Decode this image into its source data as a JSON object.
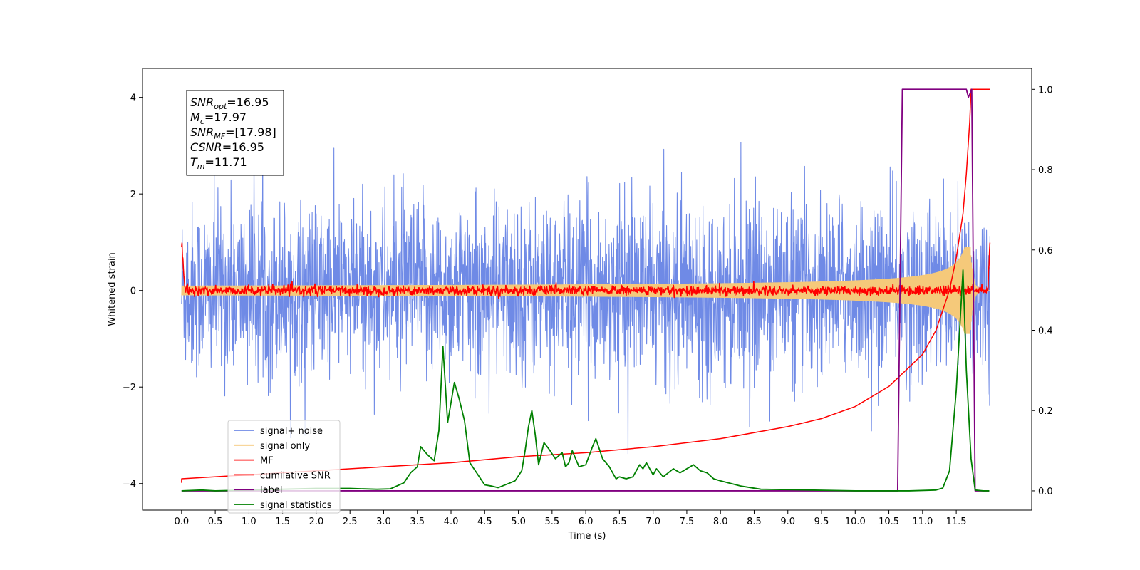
{
  "chart_data": {
    "type": "line",
    "xlabel": "Time (s)",
    "ylabel": "Whitened strain",
    "xlim": [
      -0.58,
      12.62
    ],
    "ylim": [
      -4.55,
      4.6
    ],
    "y2lim": [
      -0.048,
      1.052
    ],
    "xticks": [
      0.0,
      0.5,
      1.0,
      1.5,
      2.0,
      2.5,
      3.0,
      3.5,
      4.0,
      4.5,
      5.0,
      5.5,
      6.0,
      6.5,
      7.0,
      7.5,
      8.0,
      8.5,
      9.0,
      9.5,
      10.0,
      10.5,
      11.0,
      11.5
    ],
    "xtick_labels": [
      "0.0",
      "0.5",
      "1.0",
      "1.5",
      "2.0",
      "2.5",
      "3.0",
      "3.5",
      "4.0",
      "4.5",
      "5.0",
      "5.5",
      "6.0",
      "6.5",
      "7.0",
      "7.5",
      "8.0",
      "8.5",
      "9.0",
      "9.5",
      "10.0",
      "10.5",
      "11.0",
      "11.5"
    ],
    "yticks": [
      -4,
      -2,
      0,
      2,
      4
    ],
    "ytick_labels": [
      "−4",
      "−2",
      "0",
      "2",
      "4"
    ],
    "y2ticks": [
      0.0,
      0.2,
      0.4,
      0.6,
      0.8,
      1.0
    ],
    "y2tick_labels": [
      "0.0",
      "0.2",
      "0.4",
      "0.6",
      "0.8",
      "1.0"
    ],
    "grid": false,
    "legend_position": "lower-left",
    "annotation": {
      "lines": [
        {
          "base": "SNR",
          "sub": "opt",
          "value": "=16.95"
        },
        {
          "base": "M",
          "sub": "c",
          "value": "=17.97"
        },
        {
          "base": "SNR",
          "sub": "MF",
          "value": "=[17.98]"
        },
        {
          "base": "CSNR",
          "sub": "",
          "value": "=16.95"
        },
        {
          "base": "T",
          "sub": "m",
          "value": "=11.71"
        }
      ]
    },
    "series": [
      {
        "name": "signal+ noise",
        "color": "#6f8ae6",
        "axis": "left",
        "style": "noise",
        "amplitude_sd": 0.9,
        "x_range": [
          0.0,
          12.0
        ]
      },
      {
        "name": "signal only",
        "color": "#f5c97a",
        "axis": "left",
        "style": "chirp",
        "amp_start": 0.05,
        "amp_end": 0.9,
        "t_merge": 11.71
      },
      {
        "name": "MF",
        "color": "#ff0000",
        "axis": "left",
        "style": "matched-filter",
        "level": 0.0,
        "jitter": 0.05,
        "edge_start": 1.0,
        "edge_end": 1.0
      },
      {
        "name": "cumilative SNR",
        "color": "#ff0000",
        "axis": "right",
        "x": [
          0.0,
          0.001,
          1.0,
          2.0,
          3.0,
          4.0,
          5.0,
          6.0,
          7.0,
          8.0,
          9.0,
          9.5,
          10.0,
          10.5,
          11.0,
          11.2,
          11.4,
          11.5,
          11.6,
          11.65,
          11.7,
          11.72,
          11.8,
          12.0
        ],
        "y": [
          0.02,
          0.03,
          0.04,
          0.05,
          0.06,
          0.07,
          0.085,
          0.095,
          0.11,
          0.13,
          0.16,
          0.18,
          0.21,
          0.26,
          0.34,
          0.4,
          0.5,
          0.58,
          0.69,
          0.79,
          0.92,
          1.0,
          1.0,
          1.0
        ]
      },
      {
        "name": "label",
        "color": "#800080",
        "axis": "right",
        "x": [
          0.0,
          10.63,
          10.7,
          11.65,
          11.68,
          11.73,
          11.78,
          11.99
        ],
        "y": [
          0.0,
          0.0,
          1.0,
          1.0,
          0.98,
          1.0,
          0.0,
          0.0
        ]
      },
      {
        "name": "signal statistics",
        "color": "#008000",
        "axis": "right",
        "x": [
          0.0,
          0.3,
          0.5,
          1.0,
          1.5,
          2.0,
          2.5,
          2.9,
          3.1,
          3.3,
          3.4,
          3.5,
          3.55,
          3.65,
          3.75,
          3.82,
          3.88,
          3.95,
          4.05,
          4.12,
          4.2,
          4.28,
          4.4,
          4.5,
          4.6,
          4.7,
          4.85,
          4.95,
          5.05,
          5.1,
          5.15,
          5.2,
          5.25,
          5.3,
          5.38,
          5.45,
          5.55,
          5.65,
          5.7,
          5.75,
          5.8,
          5.9,
          6.0,
          6.1,
          6.15,
          6.25,
          6.35,
          6.45,
          6.5,
          6.6,
          6.7,
          6.8,
          6.85,
          6.9,
          7.0,
          7.05,
          7.15,
          7.3,
          7.4,
          7.5,
          7.6,
          7.7,
          7.8,
          7.9,
          8.0,
          8.3,
          8.6,
          9.0,
          10.0,
          10.8,
          11.2,
          11.3,
          11.4,
          11.5,
          11.6,
          11.65,
          11.72,
          11.78,
          11.9,
          11.99
        ],
        "y": [
          0.0,
          0.002,
          0.0,
          0.002,
          0.004,
          0.006,
          0.006,
          0.004,
          0.005,
          0.02,
          0.045,
          0.06,
          0.11,
          0.09,
          0.075,
          0.15,
          0.36,
          0.17,
          0.27,
          0.23,
          0.175,
          0.07,
          0.04,
          0.015,
          0.012,
          0.008,
          0.018,
          0.025,
          0.05,
          0.1,
          0.16,
          0.2,
          0.14,
          0.065,
          0.12,
          0.105,
          0.08,
          0.095,
          0.06,
          0.07,
          0.1,
          0.06,
          0.065,
          0.11,
          0.13,
          0.08,
          0.06,
          0.03,
          0.035,
          0.03,
          0.035,
          0.065,
          0.055,
          0.07,
          0.04,
          0.055,
          0.035,
          0.055,
          0.045,
          0.055,
          0.065,
          0.05,
          0.045,
          0.03,
          0.025,
          0.012,
          0.004,
          0.003,
          0.0,
          0.0,
          0.002,
          0.007,
          0.05,
          0.25,
          0.55,
          0.3,
          0.08,
          0.002,
          0.0,
          0.0
        ]
      }
    ]
  }
}
